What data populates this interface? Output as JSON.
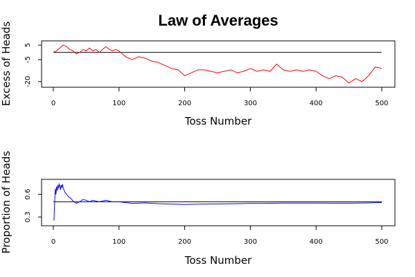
{
  "title": "Law of Averages",
  "chart_data": [
    {
      "type": "line",
      "name": "excess",
      "ylabel": "Excess of Heads",
      "xlabel": "Toss Number",
      "xlim": [
        0,
        500
      ],
      "ylim": [
        -22,
        6
      ],
      "xticks": [
        0,
        100,
        200,
        300,
        400,
        500
      ],
      "yticks": [
        5,
        -5,
        -20
      ],
      "reference_line": 0,
      "series_color": "#ff0000",
      "reference_color": "#000000",
      "x": [
        0,
        5,
        10,
        15,
        20,
        25,
        30,
        35,
        40,
        45,
        50,
        55,
        60,
        65,
        70,
        75,
        80,
        85,
        90,
        95,
        100,
        110,
        120,
        130,
        140,
        150,
        160,
        170,
        180,
        190,
        200,
        210,
        220,
        230,
        240,
        250,
        260,
        270,
        280,
        290,
        300,
        310,
        320,
        330,
        340,
        350,
        360,
        370,
        380,
        390,
        400,
        410,
        420,
        430,
        440,
        450,
        460,
        470,
        480,
        490,
        500
      ],
      "y": [
        0,
        1,
        3,
        5,
        4,
        2,
        1,
        -1,
        0,
        2,
        1,
        3,
        1,
        2,
        0,
        2,
        4,
        2,
        1,
        2,
        1,
        -3,
        -5,
        -3,
        -4,
        -6,
        -7,
        -9,
        -11,
        -12,
        -16,
        -14,
        -12,
        -12,
        -13,
        -14,
        -13,
        -12,
        -14,
        -13,
        -11,
        -13,
        -12,
        -13,
        -8,
        -12,
        -13,
        -12,
        -13,
        -12,
        -13,
        -16,
        -18,
        -16,
        -17,
        -21,
        -18,
        -20,
        -16,
        -10,
        -11
      ]
    },
    {
      "type": "line",
      "name": "proportion",
      "ylabel": "Proportion of Heads",
      "xlabel": "Toss Number",
      "xlim": [
        0,
        500
      ],
      "ylim": [
        0.22,
        0.76
      ],
      "xticks": [
        0,
        100,
        200,
        300,
        400,
        500
      ],
      "yticks": [
        0.3,
        0.6
      ],
      "reference_line": 0.5,
      "series_color": "#0000ff",
      "reference_color": "#000000",
      "x": [
        1,
        2,
        3,
        4,
        5,
        6,
        7,
        8,
        9,
        10,
        11,
        12,
        13,
        14,
        15,
        16,
        18,
        20,
        22,
        24,
        26,
        28,
        30,
        35,
        40,
        45,
        50,
        55,
        60,
        70,
        80,
        90,
        100,
        120,
        140,
        160,
        180,
        200,
        220,
        250,
        280,
        300,
        320,
        350,
        380,
        400,
        420,
        450,
        480,
        500
      ],
      "y": [
        0.25,
        0.5,
        0.67,
        0.6,
        0.7,
        0.65,
        0.72,
        0.68,
        0.74,
        0.7,
        0.66,
        0.72,
        0.69,
        0.73,
        0.68,
        0.66,
        0.62,
        0.6,
        0.58,
        0.56,
        0.55,
        0.53,
        0.51,
        0.48,
        0.5,
        0.53,
        0.52,
        0.5,
        0.52,
        0.5,
        0.52,
        0.5,
        0.5,
        0.48,
        0.485,
        0.475,
        0.47,
        0.465,
        0.47,
        0.472,
        0.475,
        0.48,
        0.48,
        0.484,
        0.483,
        0.484,
        0.482,
        0.482,
        0.485,
        0.49
      ]
    }
  ]
}
